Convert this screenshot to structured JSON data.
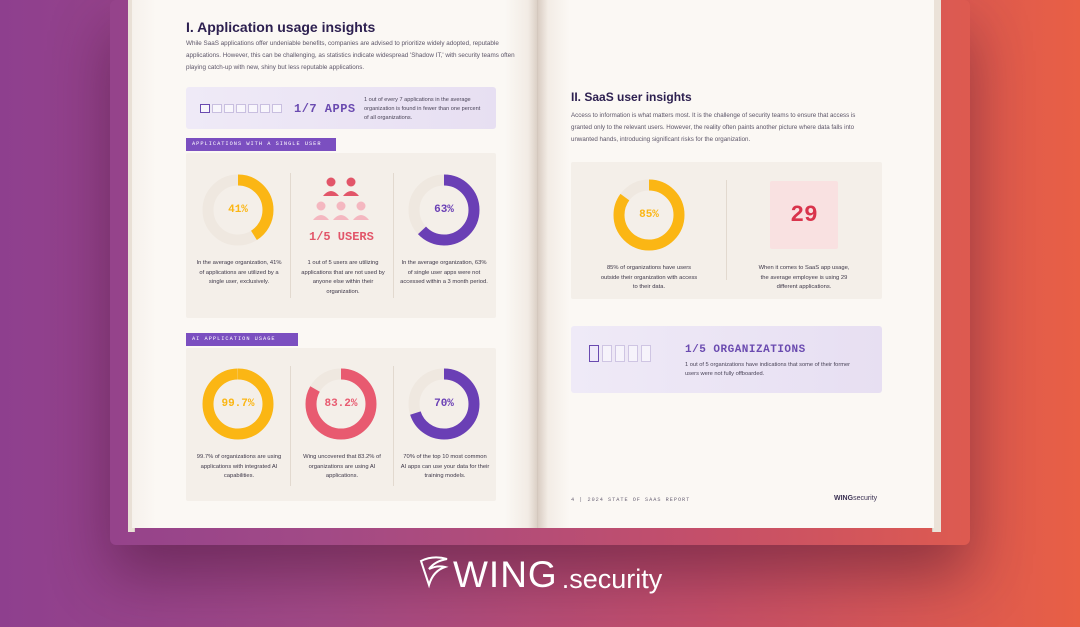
{
  "left_page": {
    "title": "I. Application usage insights",
    "intro": "While SaaS applications offer undeniable benefits, companies are advised to prioritize widely adopted, reputable applications. However, this can be challenging, as statistics indicate widespread 'Shadow IT,' with security teams often playing catch-up with new, shiny but less reputable applications.",
    "apps_stat": {
      "label": "1/7 APPS",
      "description": "1 out of every 7 applications in the average organization is found in fewer than one percent of all organizations."
    },
    "section_single_user": {
      "tag": "APPLICATIONS WITH A SINGLE USER",
      "stats": [
        {
          "value": "41%",
          "fraction": 0.41,
          "color": "#fbb614",
          "caption": "In the average organization, 41% of applications are utilized by a single user, exclusively."
        },
        {
          "value": "1/5 USERS",
          "icon": "users-group-icon",
          "color": "#e25569",
          "caption": "1 out of 5 users are utilizing applications that are not used by anyone else within their organization."
        },
        {
          "value": "63%",
          "fraction": 0.63,
          "color": "#6a3fb5",
          "caption": "In the average organization, 63% of single user apps were not accessed within a 3 month period."
        }
      ]
    },
    "section_ai": {
      "tag": "AI APPLICATION USAGE",
      "stats": [
        {
          "value": "99.7%",
          "fraction": 0.997,
          "color": "#fbb614",
          "caption": "99.7% of organizations are using applications with integrated AI capabilities."
        },
        {
          "value": "83.2%",
          "fraction": 0.832,
          "color": "#e85a70",
          "caption": "Wing uncovered that 83.2% of organizations are using AI applications."
        },
        {
          "value": "70%",
          "fraction": 0.7,
          "color": "#6a3fb5",
          "caption": "70% of the top 10 most common AI apps can use your data for their training models."
        }
      ]
    }
  },
  "right_page": {
    "title": "II. SaaS user insights",
    "intro": "Access to information is what matters most. It is the challenge of security teams to ensure that access is granted only to the relevant users. However, the reality often paints another picture where data falls into unwanted hands, introducing significant risks for the organization.",
    "stat_85": {
      "value": "85%",
      "fraction": 0.85,
      "color": "#fbb614",
      "caption": "85% of organizations have users outside their organization with access to their data."
    },
    "stat_29": {
      "value": "29",
      "caption": "When it comes to SaaS app usage, the average employee is using 29 different applications."
    },
    "org_stat": {
      "label": "1/5 ORGANIZATIONS",
      "description": "1 out of 5 organizations have indications that some of their former users were not fully offboarded."
    },
    "footer": {
      "text": "4 | 2024 STATE OF SAAS REPORT",
      "logo_bold": "WING",
      "logo_rest": "security"
    }
  },
  "brand": {
    "wing": "WING",
    "security": ".security"
  },
  "colors": {
    "accent_purple": "#6a3fb5",
    "accent_yellow": "#fbb614",
    "accent_red": "#e25569"
  }
}
